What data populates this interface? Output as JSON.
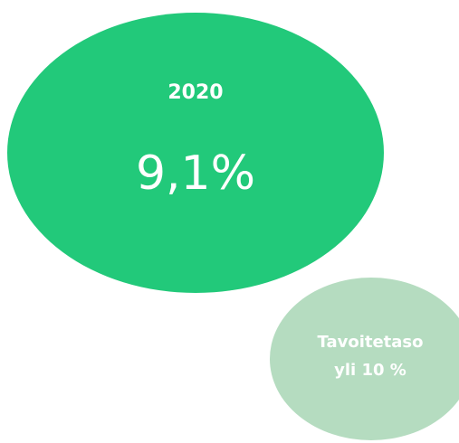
{
  "main_bubble": {
    "year": "2020",
    "value": "9,1%"
  },
  "target_bubble": {
    "lines": [
      "Tavoitetaso",
      "yli 10 %"
    ]
  }
}
